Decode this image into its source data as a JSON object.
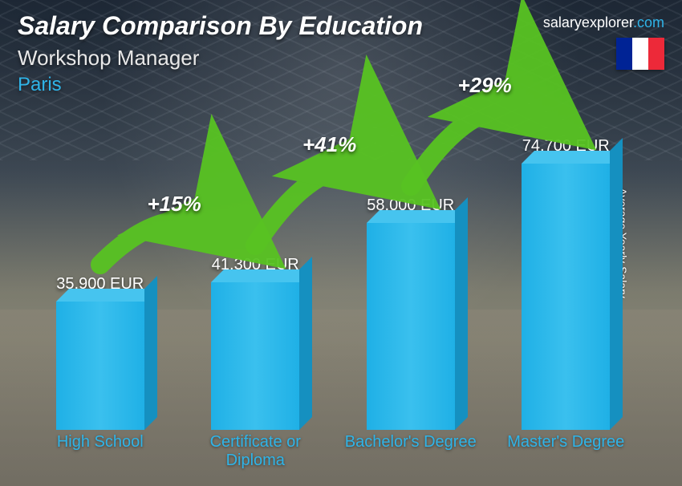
{
  "header": {
    "title": "Salary Comparison By Education",
    "subtitle": "Workshop Manager",
    "location": "Paris"
  },
  "brand": {
    "name": "salaryexplorer",
    "domain": ".com"
  },
  "flag": {
    "colors": [
      "#002395",
      "#ffffff",
      "#ed2939"
    ]
  },
  "yaxis_label": "Average Yearly Salary",
  "chart": {
    "type": "bar-3d",
    "bar_color_front": "#1fb0e6",
    "bar_color_top": "#46c4ef",
    "bar_color_side": "#1590c0",
    "label_color": "#2fb4e8",
    "max_value": 80000,
    "bars": [
      {
        "category": "High School",
        "value": 35900,
        "value_label": "35,900 EUR"
      },
      {
        "category": "Certificate or Diploma",
        "value": 41300,
        "value_label": "41,300 EUR"
      },
      {
        "category": "Bachelor's Degree",
        "value": 58000,
        "value_label": "58,000 EUR"
      },
      {
        "category": "Master's Degree",
        "value": 74700,
        "value_label": "74,700 EUR"
      }
    ],
    "increments": [
      {
        "label": "+15%",
        "arc_color": "#58c322"
      },
      {
        "label": "+41%",
        "arc_color": "#58c322"
      },
      {
        "label": "+29%",
        "arc_color": "#58c322"
      }
    ]
  }
}
